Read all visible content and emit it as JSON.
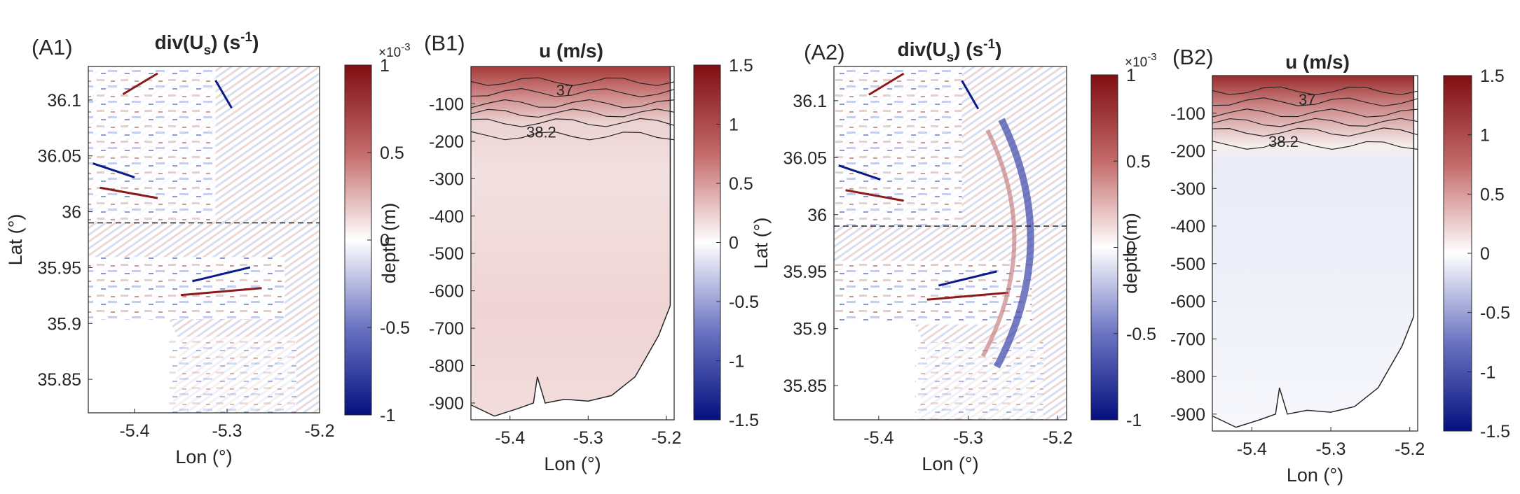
{
  "colors": {
    "pos": "#8b1a1a",
    "neg": "#0a1a8a",
    "zero": "#ffffff",
    "axis": "#262626"
  },
  "chart_data": [
    {
      "panel": "(A1)",
      "type": "heatmap",
      "title": "div(U",
      "title_sub": "s",
      "title_unit": ") (s",
      "title_sup": "-1",
      "title_end": ")",
      "xlabel": "Lon (°)",
      "ylabel": "Lat (°)",
      "xlim": [
        -5.45,
        -5.2
      ],
      "ylim": [
        35.82,
        36.13
      ],
      "xticks": [
        "-5.4",
        "-5.3",
        "-5.2"
      ],
      "yticks": [
        "35.85",
        "35.9",
        "35.95",
        "36",
        "36.05",
        "36.1"
      ],
      "section_line_lat": 35.99,
      "colorbar": {
        "clim": [
          -1,
          1
        ],
        "ticks": [
          "1",
          "0.5",
          "0",
          "-0.5",
          "-1"
        ],
        "multiplier_base": "×10",
        "multiplier_exp": "-3"
      }
    },
    {
      "panel": "(B1)",
      "type": "heatmap",
      "title": "u (m/s)",
      "xlabel": "Lon (°)",
      "ylabel": "depth (m)",
      "xlim": [
        -5.45,
        -5.19
      ],
      "ylim": [
        -945,
        0
      ],
      "xticks": [
        "-5.4",
        "-5.3",
        "-5.2"
      ],
      "yticks": [
        "-100",
        "-200",
        "-300",
        "-400",
        "-500",
        "-600",
        "-700",
        "-800",
        "-900"
      ],
      "contour_labels": [
        "37",
        "38.2"
      ],
      "colorbar": {
        "clim": [
          -1.5,
          1.5
        ],
        "ticks": [
          "1.5",
          "1",
          "0.5",
          "0",
          "-0.5",
          "-1",
          "-1.5"
        ]
      }
    },
    {
      "panel": "(A2)",
      "type": "heatmap",
      "title": "div(U",
      "title_sub": "s",
      "title_unit": ") (s",
      "title_sup": "-1",
      "title_end": ")",
      "xlabel": "Lon (°)",
      "ylabel": "Lat (°)",
      "xlim": [
        -5.45,
        -5.19
      ],
      "ylim": [
        35.82,
        36.13
      ],
      "xticks": [
        "-5.4",
        "-5.3",
        "-5.2"
      ],
      "yticks": [
        "35.85",
        "35.9",
        "35.95",
        "36",
        "36.05",
        "36.1"
      ],
      "section_line_lat": 35.99,
      "colorbar": {
        "clim": [
          -1,
          1
        ],
        "ticks": [
          "1",
          "0.5",
          "0",
          "-0.5",
          "-1"
        ],
        "multiplier_base": "×10",
        "multiplier_exp": "-3"
      }
    },
    {
      "panel": "(B2)",
      "type": "heatmap",
      "title": "u (m/s)",
      "xlabel": "Lon (°)",
      "ylabel": "depth (m)",
      "xlim": [
        -5.45,
        -5.19
      ],
      "ylim": [
        -945,
        0
      ],
      "xticks": [
        "-5.4",
        "-5.3",
        "-5.2"
      ],
      "yticks": [
        "-100",
        "-200",
        "-300",
        "-400",
        "-500",
        "-600",
        "-700",
        "-800",
        "-900"
      ],
      "contour_labels": [
        "37",
        "38.2"
      ],
      "colorbar": {
        "clim": [
          -1.5,
          1.5
        ],
        "ticks": [
          "1.5",
          "1",
          "0.5",
          "0",
          "-0.5",
          "-1",
          "-1.5"
        ]
      }
    }
  ]
}
